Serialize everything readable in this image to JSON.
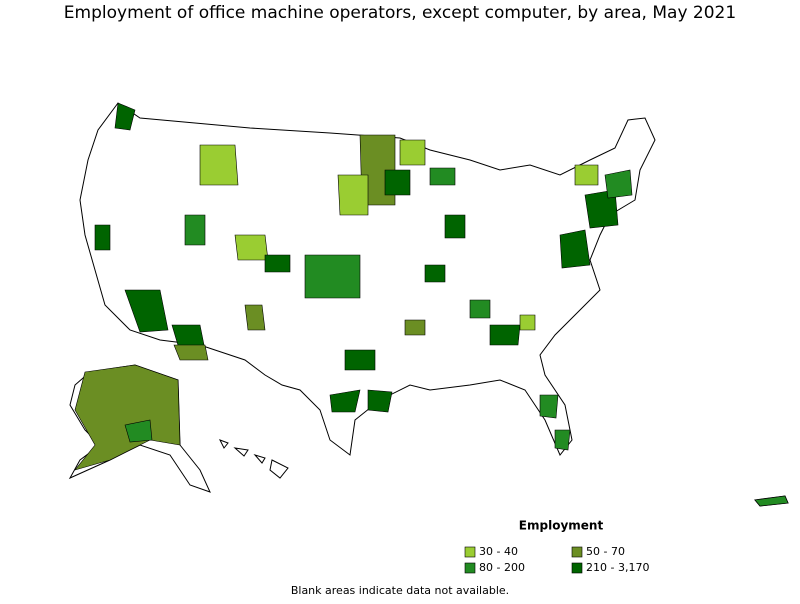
{
  "title": "Employment of office machine operators, except computer, by area, May 2021",
  "legend": {
    "title": "Employment",
    "items": [
      {
        "label": "30 - 40",
        "color": "#9acd32"
      },
      {
        "label": "50 - 70",
        "color": "#6b8e23"
      },
      {
        "label": "80 - 200",
        "color": "#228b22"
      },
      {
        "label": "210 - 3,170",
        "color": "#006400"
      }
    ]
  },
  "note": "Blank areas indicate data not available."
}
